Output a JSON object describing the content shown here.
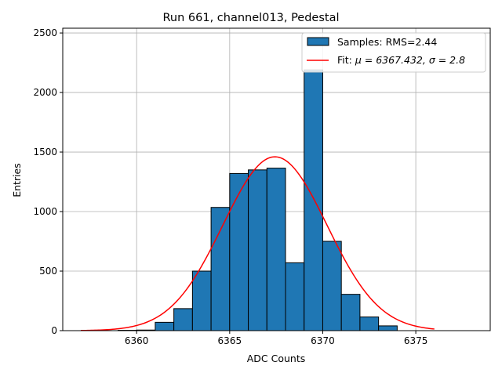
{
  "chart_data": {
    "type": "bar",
    "title": "Run 661, channel013, Pedestal",
    "xlabel": "ADC Counts",
    "ylabel": "Entries",
    "xlim": [
      6356.03,
      6379.0
    ],
    "ylim": [
      0,
      2540
    ],
    "grid": true,
    "legend_position": "top-right",
    "xticks": [
      6360,
      6365,
      6370,
      6375
    ],
    "yticks": [
      0,
      500,
      1000,
      1500,
      2000,
      2500
    ],
    "histogram": {
      "name": "Samples: RMS=2.44",
      "bin_edges": [
        6359,
        6360,
        6361,
        6362,
        6363,
        6364,
        6365,
        6366,
        6367,
        6368,
        6369,
        6370,
        6371,
        6372,
        6373,
        6374
      ],
      "values": [
        3,
        5,
        70,
        185,
        500,
        1035,
        1320,
        1350,
        1365,
        570,
        2190,
        750,
        305,
        115,
        40
      ],
      "color": "#1f77b4"
    },
    "fit": {
      "name_prefix": "Fit: ",
      "name_mu": "μ = 6367.432, ",
      "name_sigma": "σ = 2.8",
      "mu": 6367.432,
      "sigma": 2.8,
      "amplitude": 1460,
      "x_range": [
        6357,
        6376
      ],
      "color": "#ff0000"
    }
  }
}
